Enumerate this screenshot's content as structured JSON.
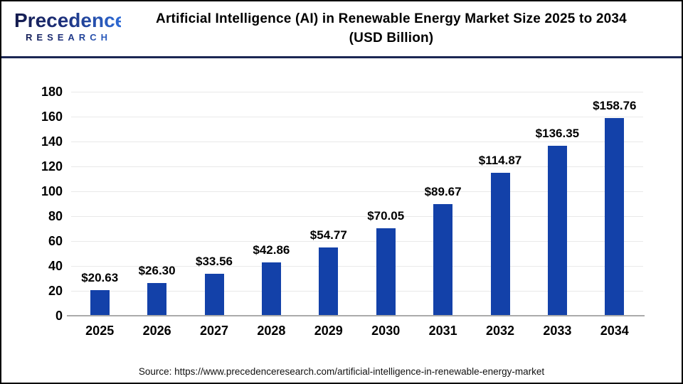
{
  "logo": {
    "name": "Precedence",
    "subname": "RESEARCH",
    "color_dark": "#141B4D",
    "color_light": "#2E6BD6"
  },
  "header": {
    "title_line1": "Artificial Intelligence (AI) in Renewable Energy Market Size 2025 to 2034",
    "title_line2": "(USD Billion)",
    "divider_color": "#1B2653"
  },
  "chart_data": {
    "type": "bar",
    "title": "Artificial Intelligence (AI) in Renewable Energy Market Size 2025 to 2034 (USD Billion)",
    "categories": [
      "2025",
      "2026",
      "2027",
      "2028",
      "2029",
      "2030",
      "2031",
      "2032",
      "2033",
      "2034"
    ],
    "values": [
      20.63,
      26.3,
      33.56,
      42.86,
      54.77,
      70.05,
      89.67,
      114.87,
      136.35,
      158.76
    ],
    "value_labels": [
      "$20.63",
      "$26.30",
      "$33.56",
      "$42.86",
      "$54.77",
      "$70.05",
      "$89.67",
      "$114.87",
      "$136.35",
      "$158.76"
    ],
    "xlabel": "",
    "ylabel": "",
    "ylim": [
      0,
      180
    ],
    "ytick_step": 20,
    "grid": true,
    "legend_position": "none",
    "bar_color": "#1341A9",
    "grid_color": "#E9E9E9",
    "axis_line_color": "#ABABAB"
  },
  "footer": {
    "source": "Source: https://www.precedenceresearch.com/artificial-intelligence-in-renewable-energy-market"
  }
}
